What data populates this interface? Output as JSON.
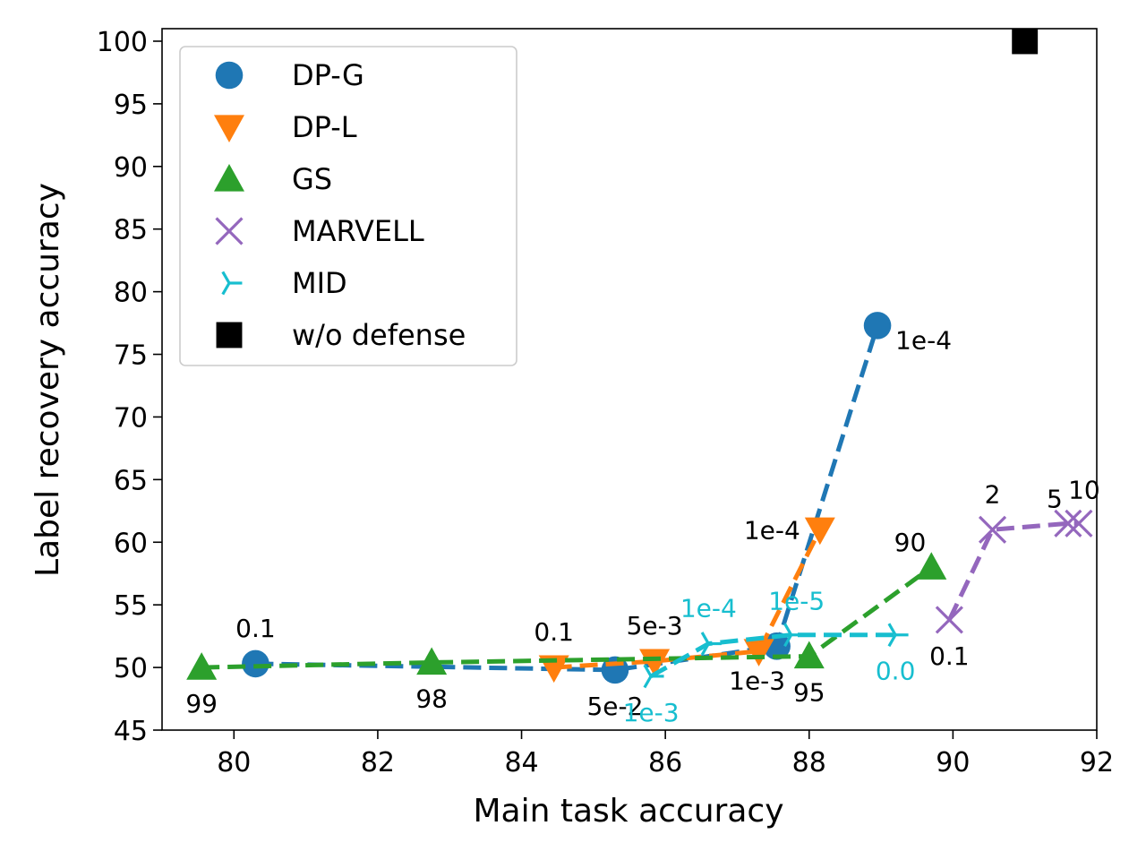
{
  "chart_data": {
    "type": "scatter",
    "title": "",
    "xlabel": "Main task accuracy",
    "ylabel": "Label recovery accuracy",
    "xlim": [
      79,
      92
    ],
    "ylim": [
      45,
      101
    ],
    "xticks": [
      80,
      82,
      84,
      86,
      88,
      90,
      92
    ],
    "yticks": [
      45,
      50,
      55,
      60,
      65,
      70,
      75,
      80,
      85,
      90,
      95,
      100
    ],
    "legend_position": "top-left",
    "series": [
      {
        "name": "DP-G",
        "color": "#1f77b4",
        "marker": "circle",
        "line": "dashed",
        "points": [
          {
            "x": 80.3,
            "y": 50.3,
            "label": "0.1",
            "anchor": "above"
          },
          {
            "x": 85.3,
            "y": 49.8,
            "label": "5e-2",
            "anchor": "below"
          },
          {
            "x": 87.55,
            "y": 51.7,
            "label": "1e-3",
            "anchor": "below-left"
          },
          {
            "x": 88.95,
            "y": 77.3,
            "label": "1e-4",
            "anchor": "right-below"
          }
        ]
      },
      {
        "name": "DP-L",
        "color": "#ff7f0e",
        "marker": "triangle-down",
        "line": "dashed",
        "points": [
          {
            "x": 84.45,
            "y": 50.0,
            "label": "0.1",
            "anchor": "above"
          },
          {
            "x": 85.85,
            "y": 50.5,
            "label": "5e-3",
            "anchor": "above"
          },
          {
            "x": 87.3,
            "y": 51.3,
            "label": "",
            "anchor": "none"
          },
          {
            "x": 88.15,
            "y": 61.0,
            "label": "1e-4",
            "anchor": "left"
          }
        ]
      },
      {
        "name": "GS",
        "color": "#2ca02c",
        "marker": "triangle-up",
        "line": "dashed",
        "points": [
          {
            "x": 79.55,
            "y": 50.0,
            "label": "99",
            "anchor": "below"
          },
          {
            "x": 82.75,
            "y": 50.4,
            "label": "98",
            "anchor": "below"
          },
          {
            "x": 88.0,
            "y": 50.9,
            "label": "95",
            "anchor": "below"
          },
          {
            "x": 89.7,
            "y": 58.0,
            "label": "90",
            "anchor": "above-left"
          }
        ]
      },
      {
        "name": "MARVELL",
        "color": "#9467bd",
        "marker": "x",
        "line": "dashed",
        "points": [
          {
            "x": 89.95,
            "y": 53.8,
            "label": "0.1",
            "anchor": "below"
          },
          {
            "x": 90.55,
            "y": 61.0,
            "label": "2",
            "anchor": "above"
          },
          {
            "x": 91.6,
            "y": 61.5,
            "label": "5",
            "anchor": "above-left"
          },
          {
            "x": 91.75,
            "y": 61.5,
            "label": "10",
            "anchor": "above-right"
          }
        ]
      },
      {
        "name": "MID",
        "color": "#17becf",
        "marker": "tri-right",
        "line": "dashed",
        "points": [
          {
            "x": 85.8,
            "y": 49.3,
            "label": "1e-3",
            "anchor": "below"
          },
          {
            "x": 86.6,
            "y": 51.9,
            "label": "1e-4",
            "anchor": "above"
          },
          {
            "x": 87.75,
            "y": 52.6,
            "label": "1e-5",
            "anchor": "above-right"
          },
          {
            "x": 89.2,
            "y": 52.6,
            "label": "0.0",
            "anchor": "below"
          }
        ]
      },
      {
        "name": "w/o defense",
        "color": "#000000",
        "marker": "square",
        "line": "none",
        "points": [
          {
            "x": 91.0,
            "y": 100.0,
            "label": "",
            "anchor": "none"
          }
        ]
      }
    ]
  }
}
